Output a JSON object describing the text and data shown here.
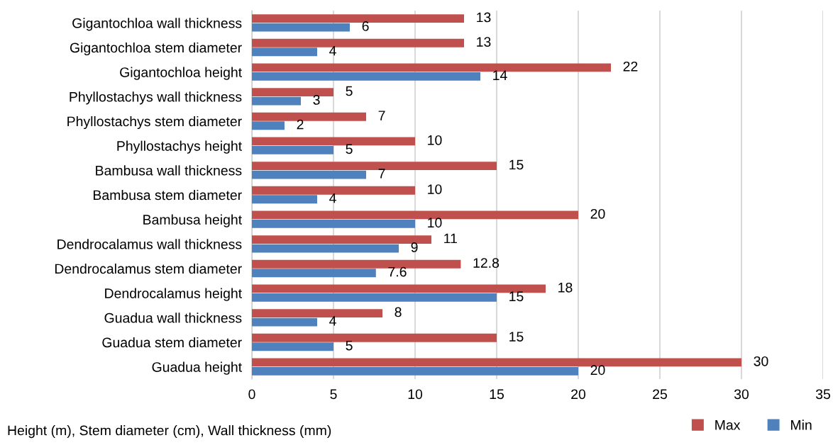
{
  "chart_data": {
    "type": "bar",
    "orientation": "horizontal",
    "xlabel": "Height (m), Stem diameter (cm), Wall thickness (mm)",
    "categories": [
      "Gigantochloa wall thickness",
      "Gigantochloa stem diameter",
      "Gigantochloa height",
      "Phyllostachys wall thickness",
      "Phyllostachys stem diameter",
      "Phyllostachys height",
      "Bambusa wall thickness",
      "Bambusa stem diameter",
      "Bambusa height",
      "Dendrocalamus wall thickness",
      "Dendrocalamus stem diameter",
      "Dendrocalamus height",
      "Guadua wall thickness",
      "Guadua stem diameter",
      "Guadua height"
    ],
    "series": [
      {
        "name": "Max",
        "color": "#c0504d",
        "values": [
          13,
          13,
          22,
          5,
          7,
          10,
          15,
          10,
          20,
          11,
          12.8,
          18,
          8,
          15,
          30
        ]
      },
      {
        "name": "Min",
        "color": "#4f81bd",
        "values": [
          6,
          4,
          14,
          3,
          2,
          5,
          7,
          4,
          10,
          9,
          7.6,
          15,
          4,
          5,
          20
        ]
      }
    ],
    "xlim": [
      0,
      35
    ],
    "xticks": [
      0,
      5,
      10,
      15,
      20,
      25,
      30,
      35
    ],
    "grid": "x",
    "legend": "bottom right",
    "data_labels": true
  }
}
